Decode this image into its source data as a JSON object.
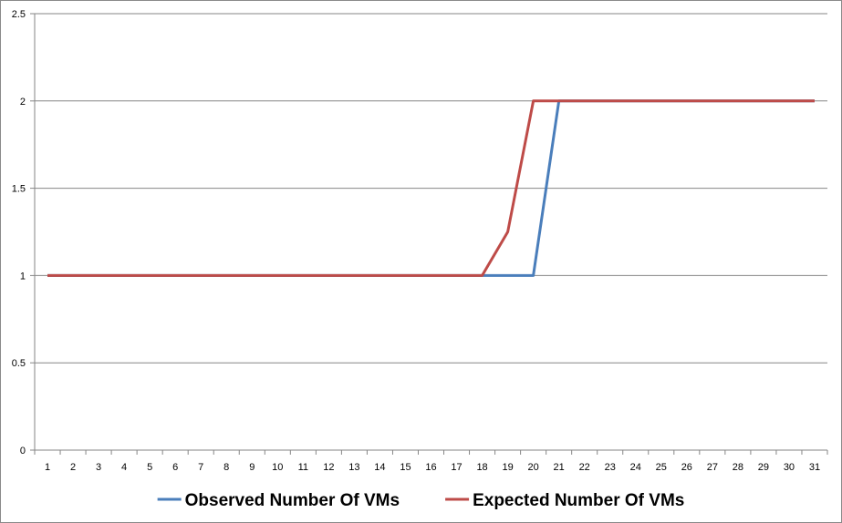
{
  "chart_data": {
    "type": "line",
    "title": "",
    "xlabel": "",
    "ylabel": "",
    "categories": [
      "1",
      "2",
      "3",
      "4",
      "5",
      "6",
      "7",
      "8",
      "9",
      "10",
      "11",
      "12",
      "13",
      "14",
      "15",
      "16",
      "17",
      "18",
      "19",
      "20",
      "21",
      "22",
      "23",
      "24",
      "25",
      "26",
      "27",
      "28",
      "29",
      "30",
      "31"
    ],
    "ylim": [
      0,
      2.5
    ],
    "yticks": [
      "0",
      "0.5",
      "1",
      "1.5",
      "2",
      "2.5"
    ],
    "grid": "horizontal",
    "legend": "bottom",
    "series": [
      {
        "name": "Observed Number Of VMs",
        "color": "#4a7ebb",
        "values": [
          1,
          1,
          1,
          1,
          1,
          1,
          1,
          1,
          1,
          1,
          1,
          1,
          1,
          1,
          1,
          1,
          1,
          1,
          1,
          1,
          2,
          2,
          2,
          2,
          2,
          2,
          2,
          2,
          2,
          2,
          2
        ]
      },
      {
        "name": "Expected Number Of VMs",
        "color": "#be4b48",
        "values": [
          1,
          1,
          1,
          1,
          1,
          1,
          1,
          1,
          1,
          1,
          1,
          1,
          1,
          1,
          1,
          1,
          1,
          1,
          1.25,
          2,
          2,
          2,
          2,
          2,
          2,
          2,
          2,
          2,
          2,
          2,
          2
        ]
      }
    ]
  }
}
